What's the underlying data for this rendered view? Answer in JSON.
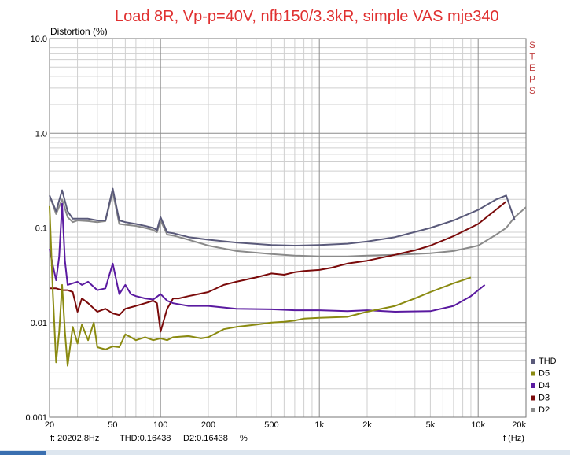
{
  "chart_data": {
    "type": "line",
    "title": "Load 8R, Vp-p=40V, nfb150/3.3kR, simple VAS mje340",
    "ylabel": "Distortion (%)",
    "xlabel": "f (Hz)",
    "xscale": "log",
    "yscale": "log",
    "xlim": [
      20,
      20000
    ],
    "ylim": [
      0.001,
      10
    ],
    "x_ticks": [
      {
        "v": 20,
        "t": "20"
      },
      {
        "v": 50,
        "t": "50"
      },
      {
        "v": 100,
        "t": "100"
      },
      {
        "v": 200,
        "t": "200"
      },
      {
        "v": 500,
        "t": "500"
      },
      {
        "v": 1000,
        "t": "1k"
      },
      {
        "v": 2000,
        "t": "2k"
      },
      {
        "v": 5000,
        "t": "5k"
      },
      {
        "v": 10000,
        "t": "10k"
      },
      {
        "v": 20000,
        "t": "20k"
      }
    ],
    "y_ticks": [
      {
        "v": 10,
        "t": "10.0"
      },
      {
        "v": 1,
        "t": "1.0"
      },
      {
        "v": 0.1,
        "t": "0.1"
      },
      {
        "v": 0.01,
        "t": "0.01"
      },
      {
        "v": 0.001,
        "t": "0.001"
      }
    ],
    "grid": true,
    "legend_position": "bottom-right",
    "series": [
      {
        "name": "THD",
        "color": "#5a5a7a",
        "x": [
          20,
          22,
          24,
          26,
          28,
          30,
          35,
          40,
          45,
          50,
          55,
          60,
          70,
          80,
          90,
          95,
          100,
          110,
          120,
          150,
          200,
          300,
          500,
          700,
          1000,
          1500,
          2000,
          3000,
          5000,
          7000,
          10000,
          13000,
          15000,
          17000
        ],
        "y": [
          0.22,
          0.15,
          0.25,
          0.15,
          0.125,
          0.125,
          0.125,
          0.12,
          0.12,
          0.26,
          0.12,
          0.115,
          0.11,
          0.105,
          0.1,
          0.095,
          0.13,
          0.09,
          0.088,
          0.08,
          0.075,
          0.07,
          0.066,
          0.065,
          0.066,
          0.068,
          0.072,
          0.08,
          0.1,
          0.12,
          0.155,
          0.2,
          0.22,
          0.12
        ]
      },
      {
        "name": "D5",
        "color": "#8a8a10",
        "x": [
          20,
          21,
          22,
          23,
          24,
          25,
          26,
          28,
          30,
          32,
          35,
          38,
          40,
          45,
          50,
          55,
          60,
          65,
          70,
          80,
          90,
          100,
          110,
          120,
          150,
          180,
          200,
          250,
          300,
          400,
          500,
          600,
          700,
          800,
          1000,
          1500,
          2000,
          3000,
          4000,
          5000,
          7000,
          9000
        ],
        "y": [
          0.17,
          0.02,
          0.0038,
          0.008,
          0.025,
          0.008,
          0.0035,
          0.009,
          0.006,
          0.0095,
          0.0065,
          0.01,
          0.0055,
          0.0052,
          0.0056,
          0.0055,
          0.0075,
          0.007,
          0.0065,
          0.007,
          0.0065,
          0.0068,
          0.0065,
          0.007,
          0.0072,
          0.0068,
          0.007,
          0.0085,
          0.009,
          0.0095,
          0.01,
          0.0102,
          0.0105,
          0.011,
          0.0112,
          0.0115,
          0.013,
          0.015,
          0.018,
          0.021,
          0.026,
          0.03
        ]
      },
      {
        "name": "D4",
        "color": "#5a1aa0",
        "x": [
          20,
          21,
          22,
          23,
          24,
          25,
          26,
          28,
          30,
          32,
          35,
          40,
          45,
          50,
          55,
          60,
          65,
          70,
          80,
          90,
          100,
          110,
          120,
          150,
          200,
          300,
          500,
          700,
          1000,
          1500,
          2000,
          3000,
          5000,
          7000,
          9000,
          11000
        ],
        "y": [
          0.06,
          0.04,
          0.028,
          0.05,
          0.18,
          0.045,
          0.025,
          0.026,
          0.027,
          0.025,
          0.027,
          0.022,
          0.023,
          0.042,
          0.02,
          0.025,
          0.02,
          0.019,
          0.018,
          0.0175,
          0.02,
          0.017,
          0.016,
          0.015,
          0.015,
          0.014,
          0.0138,
          0.0135,
          0.0135,
          0.0132,
          0.0135,
          0.013,
          0.0132,
          0.015,
          0.019,
          0.025
        ]
      },
      {
        "name": "D3",
        "color": "#7a0a0a",
        "x": [
          20,
          22,
          24,
          26,
          28,
          30,
          32,
          35,
          40,
          45,
          50,
          55,
          60,
          70,
          80,
          90,
          95,
          100,
          110,
          120,
          130,
          150,
          200,
          250,
          300,
          400,
          500,
          600,
          700,
          800,
          1000,
          1200,
          1500,
          2000,
          3000,
          4000,
          5000,
          7000,
          10000,
          15000
        ],
        "y": [
          0.023,
          0.023,
          0.022,
          0.022,
          0.021,
          0.013,
          0.018,
          0.016,
          0.013,
          0.014,
          0.0125,
          0.012,
          0.014,
          0.015,
          0.016,
          0.017,
          0.016,
          0.008,
          0.014,
          0.018,
          0.018,
          0.019,
          0.021,
          0.025,
          0.027,
          0.03,
          0.033,
          0.032,
          0.034,
          0.035,
          0.036,
          0.038,
          0.042,
          0.045,
          0.052,
          0.058,
          0.065,
          0.082,
          0.11,
          0.19
        ]
      },
      {
        "name": "D2",
        "color": "#8a8a8a",
        "x": [
          20,
          22,
          24,
          26,
          28,
          30,
          35,
          40,
          45,
          50,
          55,
          60,
          70,
          80,
          90,
          95,
          100,
          110,
          120,
          150,
          200,
          300,
          500,
          700,
          1000,
          1500,
          2000,
          3000,
          5000,
          7000,
          10000,
          13000,
          15000,
          17000,
          20000
        ],
        "y": [
          0.22,
          0.14,
          0.2,
          0.13,
          0.115,
          0.12,
          0.118,
          0.115,
          0.118,
          0.24,
          0.11,
          0.108,
          0.105,
          0.1,
          0.095,
          0.09,
          0.12,
          0.085,
          0.083,
          0.075,
          0.065,
          0.057,
          0.053,
          0.051,
          0.05,
          0.05,
          0.051,
          0.052,
          0.054,
          0.057,
          0.065,
          0.085,
          0.1,
          0.13,
          0.165
        ]
      }
    ]
  },
  "status": {
    "frequency": "f: 20202.8Hz",
    "thd": "THD:0.16438",
    "d2": "D2:0.16438",
    "unit": "%"
  },
  "side_label": "STEPS"
}
